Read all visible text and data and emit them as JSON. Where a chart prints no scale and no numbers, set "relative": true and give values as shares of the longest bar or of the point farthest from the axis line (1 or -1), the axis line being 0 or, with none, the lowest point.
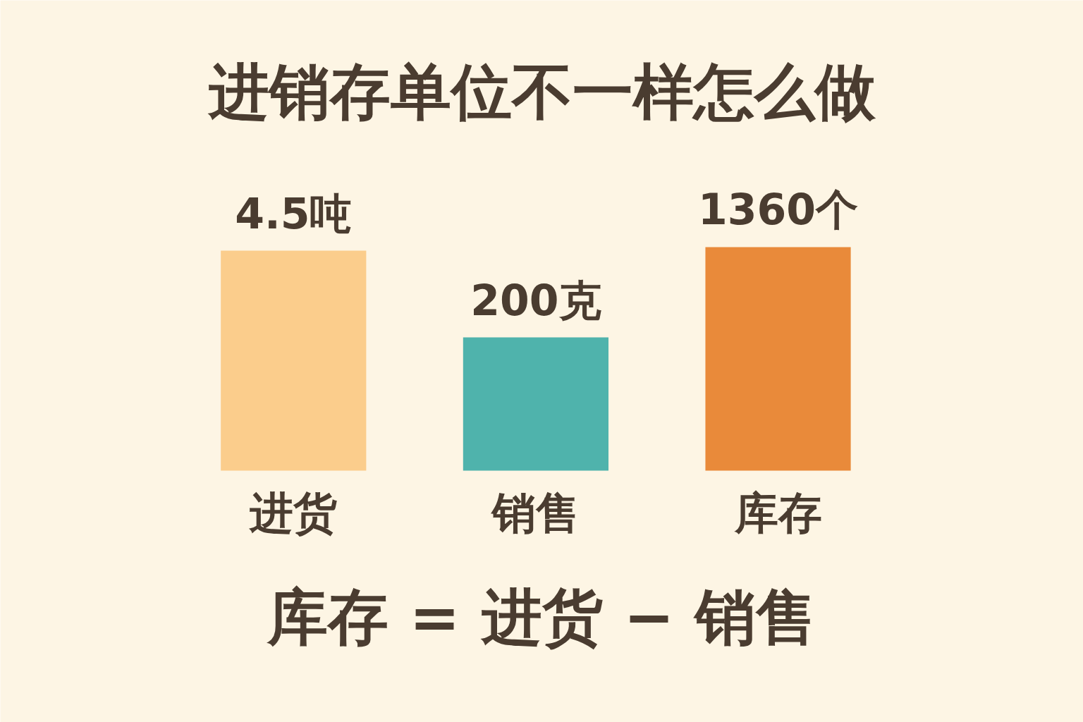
{
  "chart_data": {
    "type": "bar",
    "title": "进销存单位不一样怎么做",
    "categories": [
      "进货",
      "销售",
      "库存"
    ],
    "values": [
      0.984,
      0.596,
      1
    ],
    "colors": [
      "#fbcd8c",
      "#4fb3ac",
      "#e98a3a"
    ],
    "relative": true,
    "annotations": [
      {
        "text": "4.5吨",
        "x": "进货",
        "y": 0.984
      },
      {
        "text": "200克",
        "x": "销售",
        "y": 0.596
      },
      {
        "text": "1360个",
        "x": "库存",
        "y": 1
      },
      "库存 = 进货 − 销售"
    ]
  }
}
